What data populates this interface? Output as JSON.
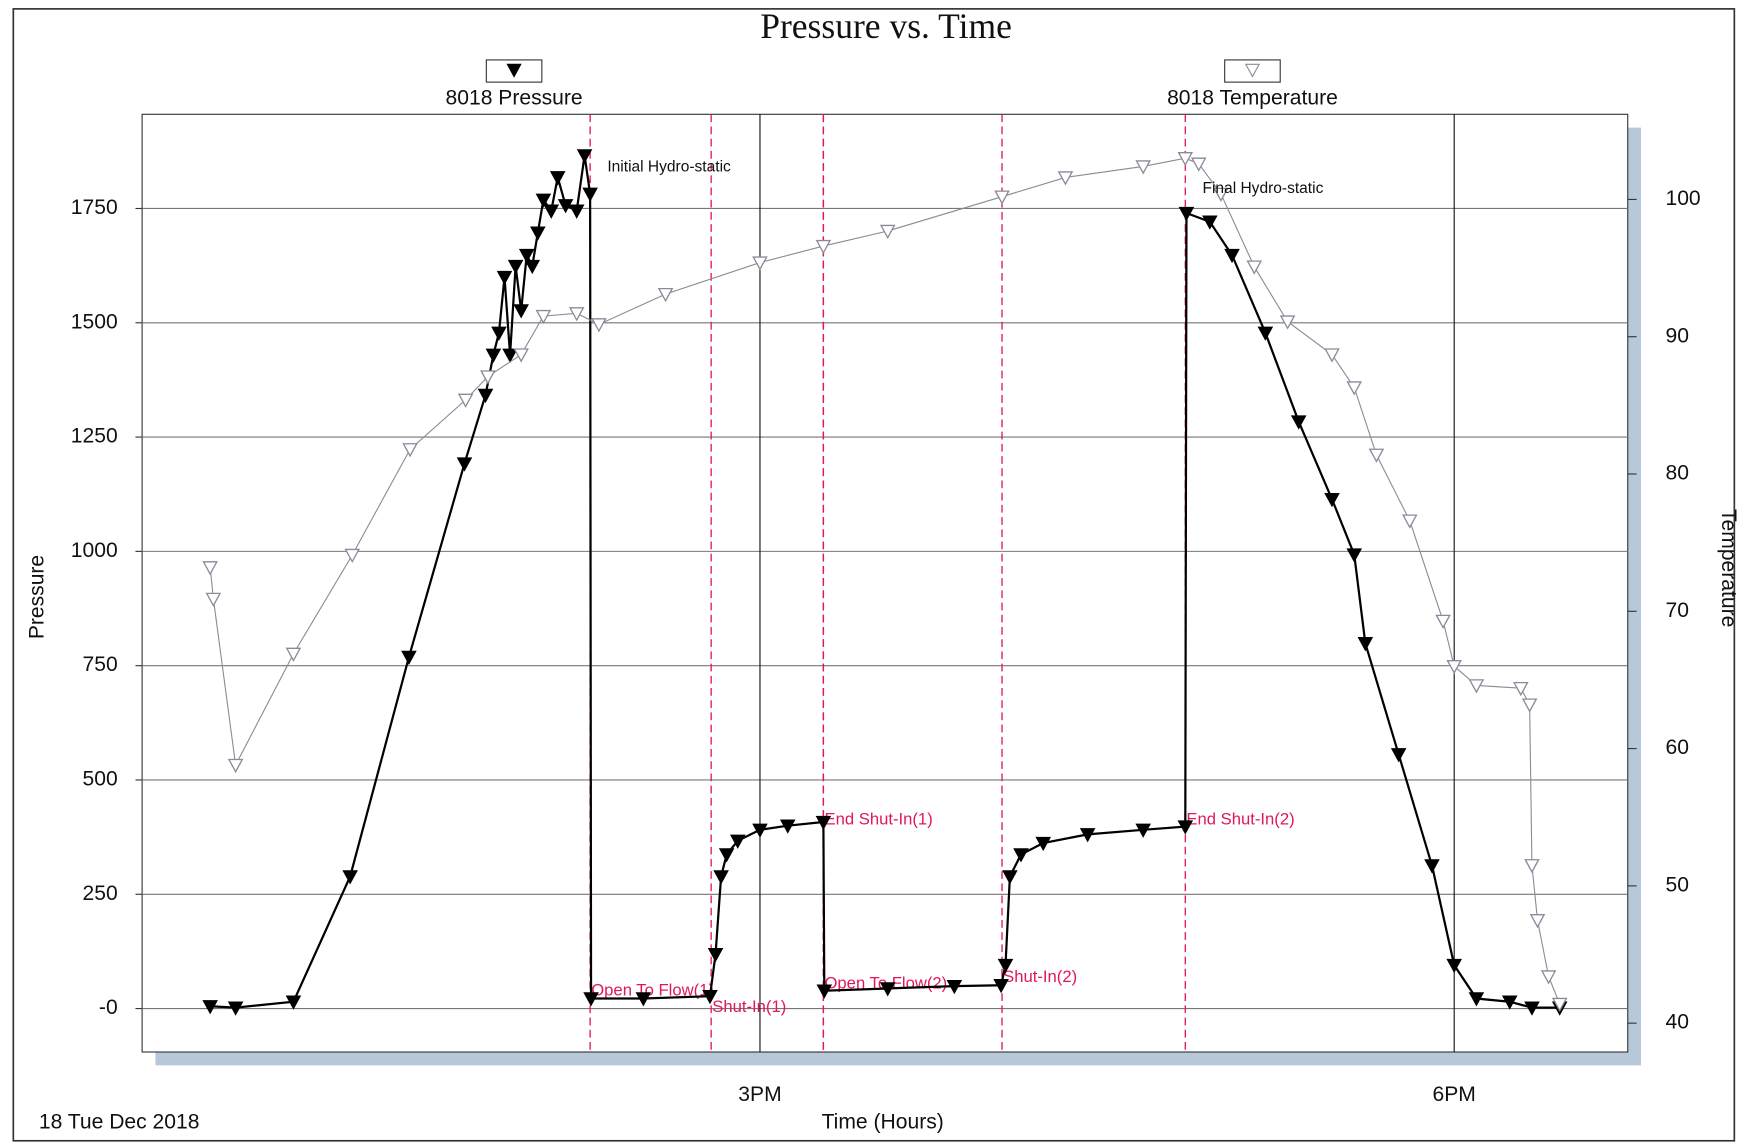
{
  "chart_data": {
    "type": "line",
    "title": "Pressure vs. Time",
    "x_label": "Time (Hours)",
    "y_label": "Pressure",
    "y2_label": "Temperature",
    "date_label": "18 Tue Dec 2018",
    "xlim": [
      12.33,
      18.75
    ],
    "xticks": [
      {
        "value": 15,
        "label": "3PM"
      },
      {
        "value": 18,
        "label": "6PM"
      }
    ],
    "ylim": [
      -95,
      1956
    ],
    "yticks": [
      {
        "value": 0,
        "label": "-0"
      },
      250,
      500,
      750,
      1000,
      1250,
      1500,
      1750
    ],
    "y2lim": [
      37.9,
      106.2
    ],
    "y2ticks": [
      40,
      50,
      60,
      70,
      80,
      90,
      100
    ],
    "grid": true,
    "series": [
      {
        "name": "8018 Pressure",
        "color": "#000000",
        "marker": "filled",
        "x": [
          12.624,
          12.734,
          12.984,
          13.229,
          13.483,
          13.723,
          13.814,
          13.848,
          13.872,
          13.896,
          13.92,
          13.944,
          13.968,
          13.992,
          14.016,
          14.04,
          14.064,
          14.098,
          14.126,
          14.16,
          14.208,
          14.242,
          14.266,
          14.27,
          14.496,
          14.784,
          14.808,
          14.832,
          14.856,
          14.904,
          15.0,
          15.12,
          15.274,
          15.278,
          15.552,
          15.84,
          16.042,
          16.061,
          16.08,
          16.128,
          16.224,
          16.416,
          16.656,
          16.838,
          16.843,
          16.944,
          17.04,
          17.184,
          17.328,
          17.472,
          17.568,
          17.616,
          17.76,
          17.904,
          18.0,
          18.096,
          18.24,
          18.336,
          18.456
        ],
        "values": [
          5,
          2,
          15,
          289,
          769,
          1192,
          1342,
          1430,
          1478,
          1600,
          1430,
          1624,
          1527,
          1648,
          1624,
          1697,
          1769,
          1745,
          1818,
          1757,
          1745,
          1866,
          1782,
          22,
          22,
          27,
          119,
          289,
          337,
          367,
          391,
          400,
          408,
          39,
          44,
          49,
          51,
          95,
          289,
          337,
          362,
          381,
          391,
          398,
          1740,
          1721,
          1648,
          1478,
          1284,
          1114,
          993,
          799,
          556,
          313,
          95,
          22,
          15,
          2,
          2
        ]
      },
      {
        "name": "8018 Temperature",
        "color": "#8a8a9a",
        "marker": "open",
        "axis": "y2",
        "x": [
          12.624,
          12.638,
          12.734,
          12.984,
          13.238,
          13.488,
          13.728,
          13.824,
          13.968,
          14.064,
          14.208,
          14.304,
          14.592,
          15.0,
          15.274,
          15.552,
          16.046,
          16.32,
          16.656,
          16.838,
          16.896,
          16.992,
          17.136,
          17.28,
          17.472,
          17.568,
          17.664,
          17.808,
          17.952,
          18.0,
          18.096,
          18.288,
          18.326,
          18.336,
          18.36,
          18.408,
          18.456
        ],
        "values": [
          73.2,
          70.9,
          58.8,
          66.9,
          74.1,
          81.8,
          85.4,
          87.1,
          88.7,
          91.5,
          91.7,
          90.9,
          93.1,
          95.4,
          96.6,
          97.7,
          100.2,
          101.6,
          102.4,
          103.0,
          102.6,
          100.4,
          95.1,
          91.1,
          88.7,
          86.3,
          81.4,
          76.6,
          69.3,
          66.0,
          64.6,
          64.4,
          63.2,
          51.5,
          47.5,
          43.4,
          41.4
        ]
      }
    ],
    "events": [
      {
        "x": 14.266,
        "label": "Open To Flow(1)"
      },
      {
        "x": 14.789,
        "label": "Shut-In(1)"
      },
      {
        "x": 15.274,
        "label": "End Shut-In(1)"
      },
      {
        "x": 15.274,
        "label": "Open To Flow(2)"
      },
      {
        "x": 16.046,
        "label": "Shut-In(2)"
      },
      {
        "x": 16.838,
        "label": "End Shut-In(2)"
      }
    ],
    "annotations": [
      "Initial Hydro-static",
      "Final Hydro-static"
    ]
  }
}
